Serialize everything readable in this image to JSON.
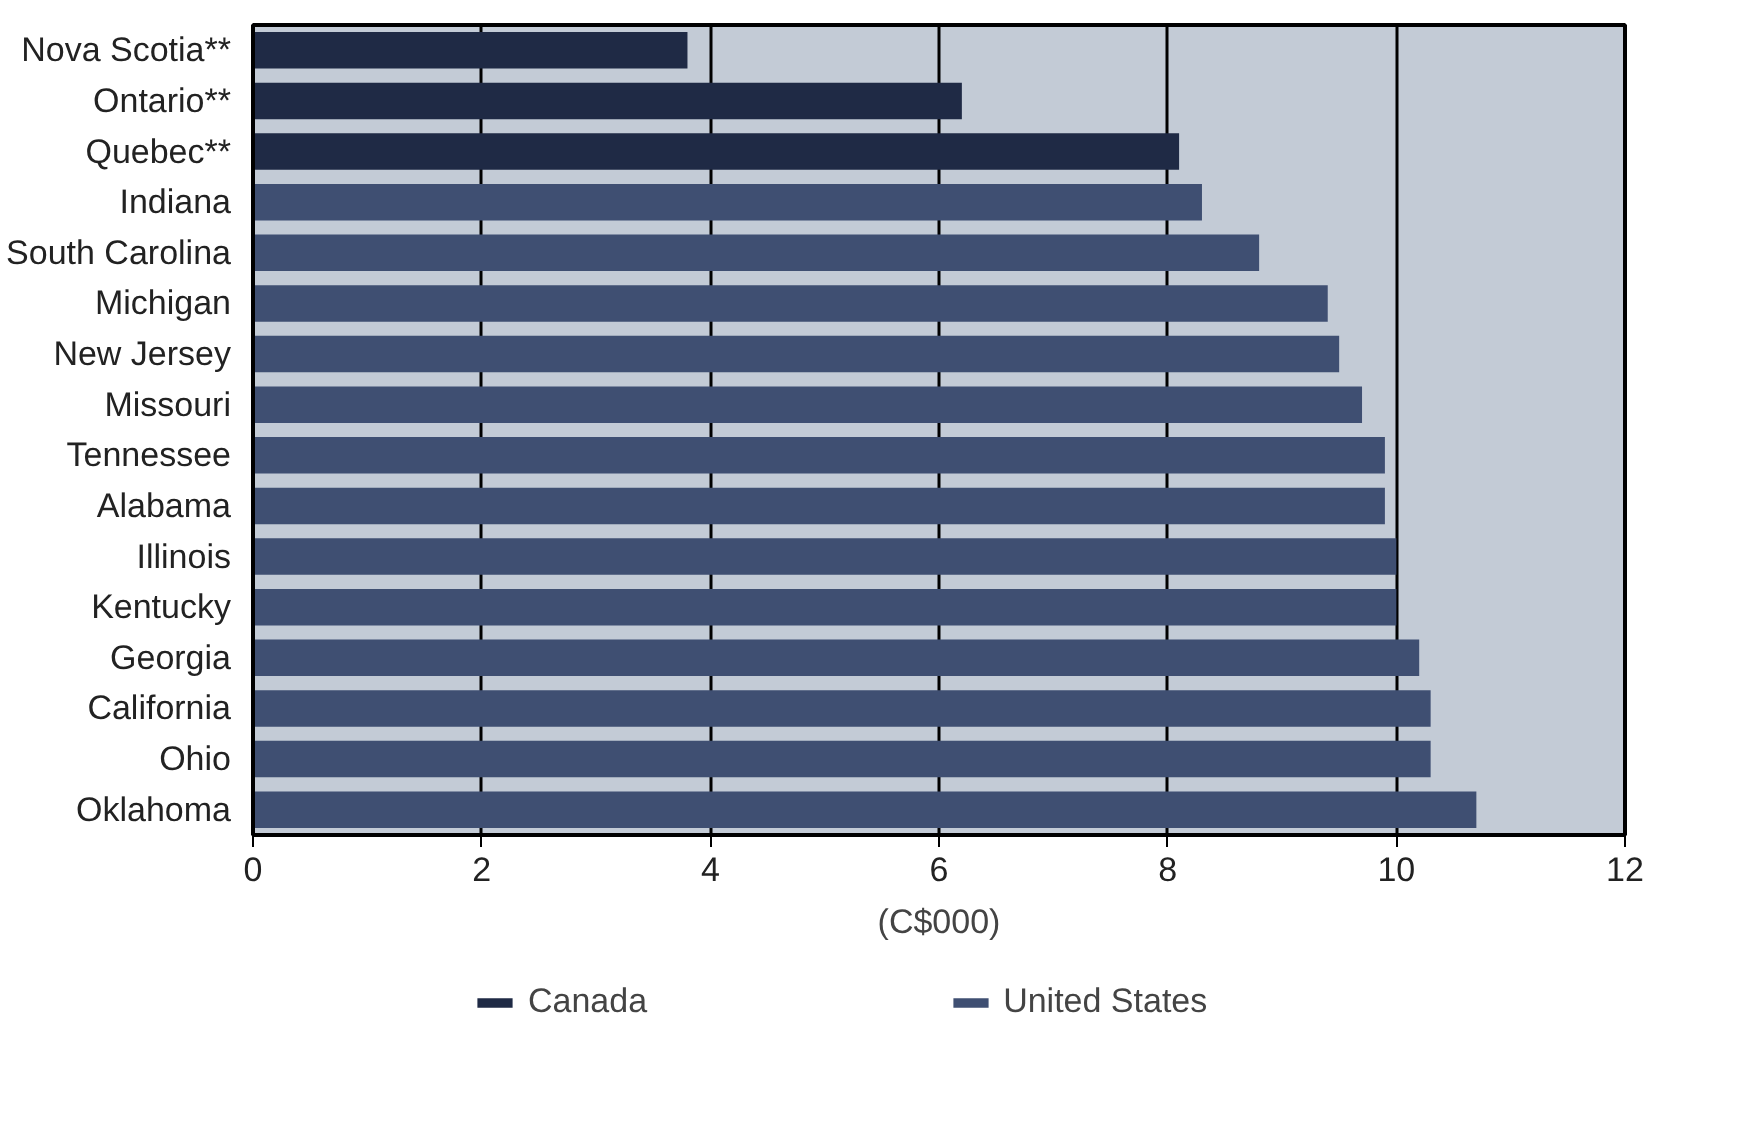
{
  "chart_data": {
    "type": "bar",
    "orientation": "horizontal",
    "xlabel": "(C$000)",
    "categories": [
      "Nova Scotia**",
      "Ontario**",
      "Quebec**",
      "Indiana",
      "South Carolina",
      "Michigan",
      "New Jersey",
      "Missouri",
      "Tennessee",
      "Alabama",
      "Illinois",
      "Kentucky",
      "Georgia",
      "California",
      "Ohio",
      "Oklahoma"
    ],
    "series": [
      {
        "name": "Canada",
        "color": "#1f2a45",
        "values": [
          3.8,
          6.2,
          8.1,
          null,
          null,
          null,
          null,
          null,
          null,
          null,
          null,
          null,
          null,
          null,
          null,
          null
        ]
      },
      {
        "name": "United States",
        "color": "#3f4f72",
        "values": [
          null,
          null,
          null,
          8.3,
          8.8,
          9.4,
          9.5,
          9.7,
          9.9,
          9.9,
          10.0,
          10.0,
          10.2,
          10.3,
          10.3,
          10.7
        ]
      }
    ],
    "xlim": [
      0,
      12
    ],
    "xticks": [
      0,
      2,
      4,
      6,
      8,
      10,
      12
    ],
    "grid": "x",
    "legend": "bottom"
  }
}
